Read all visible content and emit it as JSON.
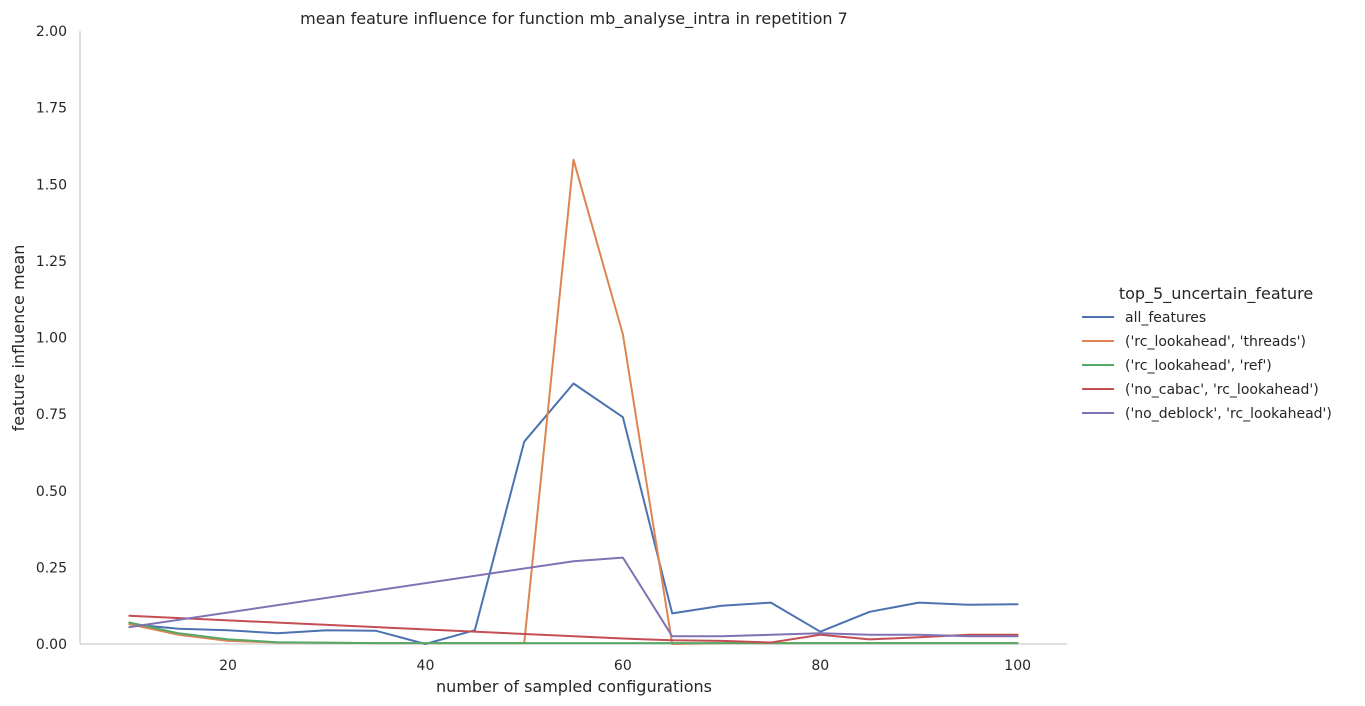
{
  "chart_data": {
    "type": "line",
    "title": "mean feature influence for function mb_analyse_intra in repetition 7",
    "xlabel": "number of sampled configurations",
    "ylabel": "feature influence mean",
    "xlim": [
      5,
      105
    ],
    "ylim": [
      0,
      2.0
    ],
    "xticks": [
      20,
      40,
      60,
      80,
      100
    ],
    "yticks": [
      "0.00",
      "0.25",
      "0.50",
      "0.75",
      "1.00",
      "1.25",
      "1.50",
      "1.75",
      "2.00"
    ],
    "grid": false,
    "legend": {
      "title": "top_5_uncertain_feature",
      "placement": "right"
    },
    "series": [
      {
        "name": "all_features",
        "color": "#4c72b0",
        "x": [
          10,
          15,
          20,
          25,
          30,
          35,
          40,
          45,
          50,
          55,
          60,
          65,
          70,
          75,
          80,
          85,
          90,
          95,
          100
        ],
        "y": [
          0.065,
          0.05,
          0.045,
          0.035,
          0.045,
          0.043,
          0.0,
          0.045,
          0.66,
          0.85,
          0.74,
          0.1,
          0.125,
          0.135,
          0.04,
          0.105,
          0.135,
          0.128,
          0.13
        ]
      },
      {
        "name": "('rc_lookahead', 'threads')",
        "color": "#dd8452",
        "x": [
          10,
          15,
          20,
          25,
          30,
          35,
          40,
          45,
          50,
          55,
          60,
          65,
          70,
          75,
          80,
          85,
          90,
          95,
          100
        ],
        "y": [
          0.065,
          0.03,
          0.01,
          0.005,
          0.004,
          0.003,
          0.003,
          0.003,
          0.003,
          1.58,
          1.01,
          0.0,
          0.003,
          0.003,
          0.003,
          0.003,
          0.003,
          0.003,
          0.003
        ]
      },
      {
        "name": "('rc_lookahead', 'ref')",
        "color": "#55a868",
        "x": [
          10,
          15,
          20,
          25,
          30,
          35,
          40,
          45,
          50,
          55,
          60,
          65,
          70,
          75,
          80,
          85,
          90,
          95,
          100
        ],
        "y": [
          0.07,
          0.035,
          0.015,
          0.006,
          0.004,
          0.003,
          0.003,
          0.003,
          0.003,
          0.003,
          0.003,
          0.003,
          0.003,
          0.003,
          0.003,
          0.003,
          0.003,
          0.003,
          0.003
        ]
      },
      {
        "name": "('no_cabac', 'rc_lookahead')",
        "color": "#c44e52",
        "x": [
          10,
          60,
          65,
          70,
          75,
          80,
          85,
          90,
          95,
          100
        ],
        "y": [
          0.092,
          0.018,
          0.012,
          0.01,
          0.005,
          0.03,
          0.015,
          0.022,
          0.03,
          0.03
        ]
      },
      {
        "name": "('no_deblock', 'rc_lookahead')",
        "color": "#8172b3",
        "x": [
          10,
          55,
          60,
          65,
          70,
          75,
          80,
          85,
          90,
          95,
          100
        ],
        "y": [
          0.055,
          0.27,
          0.282,
          0.025,
          0.025,
          0.03,
          0.035,
          0.03,
          0.03,
          0.025,
          0.025
        ]
      }
    ]
  }
}
